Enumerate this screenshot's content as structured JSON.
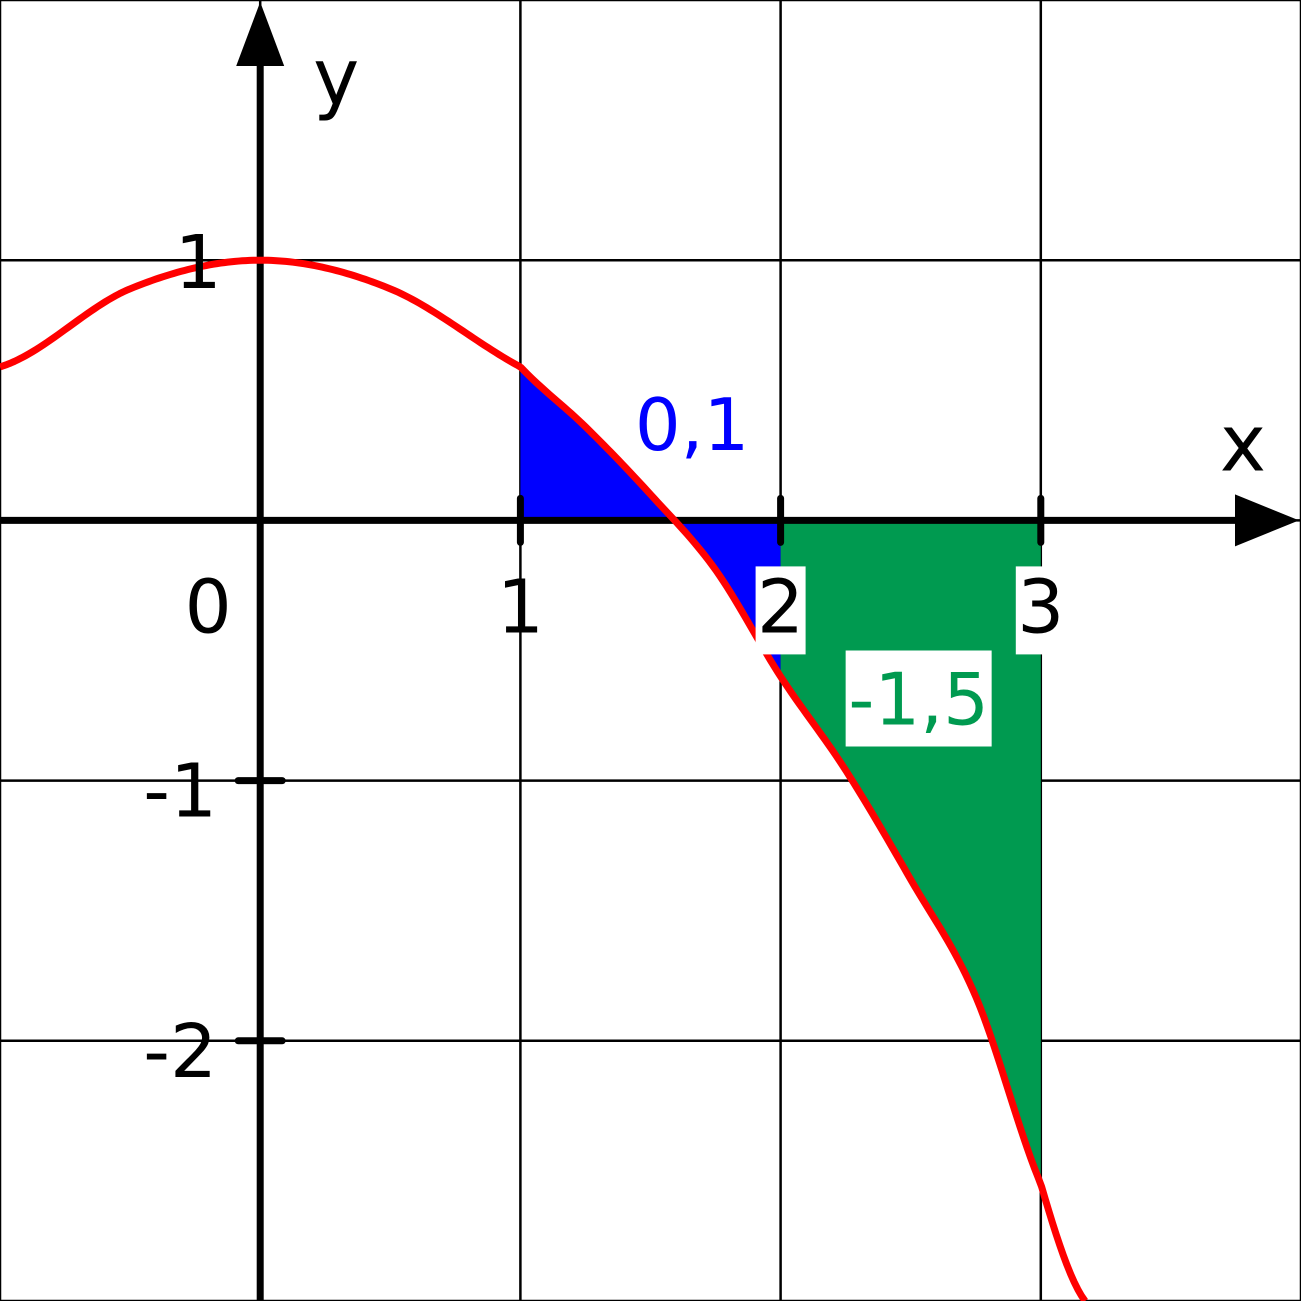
{
  "chart_data": {
    "type": "area",
    "title": "",
    "xlabel": "x",
    "ylabel": "y",
    "xlim": [
      -1,
      4
    ],
    "ylim": [
      -3,
      2
    ],
    "grid": true,
    "x_ticks": [
      {
        "value": 0,
        "label": "0"
      },
      {
        "value": 1,
        "label": "1"
      },
      {
        "value": 2,
        "label": "2"
      },
      {
        "value": 3,
        "label": "3"
      }
    ],
    "y_ticks": [
      {
        "value": 1,
        "label": "1"
      },
      {
        "value": -1,
        "label": "-1"
      },
      {
        "value": -2,
        "label": "-2"
      }
    ],
    "curve": {
      "color": "#ff0000",
      "points": [
        [
          -1,
          0.59
        ],
        [
          -0.5,
          0.89
        ],
        [
          0,
          1.0
        ],
        [
          0.5,
          0.89
        ],
        [
          1,
          0.59
        ],
        [
          1.25,
          0.36
        ],
        [
          1.5,
          0.1
        ],
        [
          1.75,
          -0.19
        ],
        [
          2,
          -0.6
        ],
        [
          2.25,
          -0.96
        ],
        [
          2.5,
          -1.38
        ],
        [
          2.75,
          -1.83
        ],
        [
          3,
          -2.55
        ],
        [
          3.17,
          -3.0
        ]
      ]
    },
    "areas": [
      {
        "label": "0,1",
        "x_from": 1,
        "x_to": 2,
        "color": "#0000ff"
      },
      {
        "label": "-1,5",
        "x_from": 2,
        "x_to": 3,
        "color": "#009a50"
      }
    ]
  }
}
